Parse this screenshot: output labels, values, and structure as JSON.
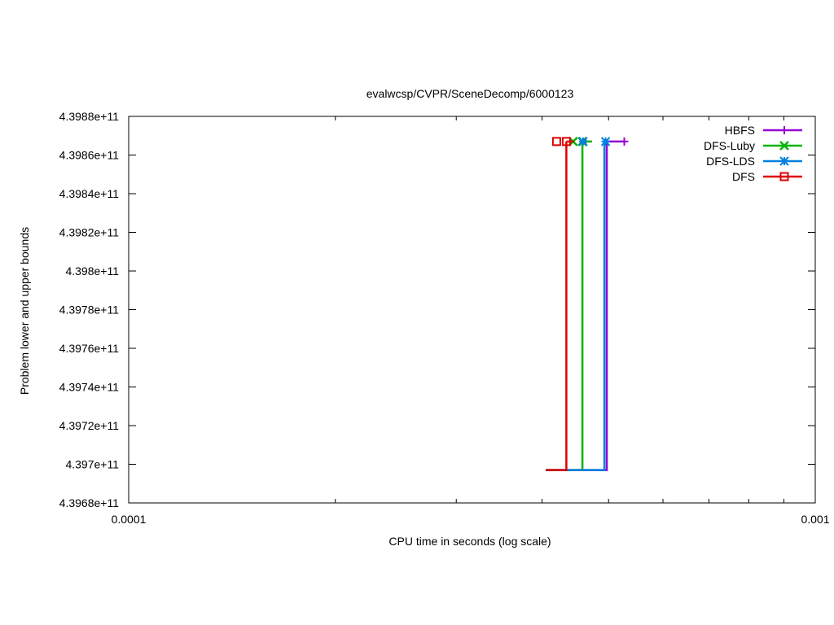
{
  "chart_data": {
    "type": "line",
    "title": "evalwcsp/CVPR/SceneDecomp/6000123",
    "xlabel": "CPU time in seconds (log scale)",
    "ylabel": "Problem lower and upper bounds",
    "x_scale": "log",
    "xlim": [
      0.0001,
      0.001
    ],
    "ylim": [
      439680000000,
      439880000000
    ],
    "x_ticks": [
      {
        "value": 0.0001,
        "label": "0.0001"
      },
      {
        "value": 0.001,
        "label": "0.001"
      }
    ],
    "y_ticks": [
      {
        "value": 439680000000,
        "label": "4.3968e+11"
      },
      {
        "value": 439700000000,
        "label": "4.397e+11"
      },
      {
        "value": 439720000000,
        "label": "4.3972e+11"
      },
      {
        "value": 439740000000,
        "label": "4.3974e+11"
      },
      {
        "value": 439760000000,
        "label": "4.3976e+11"
      },
      {
        "value": 439780000000,
        "label": "4.3978e+11"
      },
      {
        "value": 439800000000,
        "label": "4.398e+11"
      },
      {
        "value": 439820000000,
        "label": "4.3982e+11"
      },
      {
        "value": 439840000000,
        "label": "4.3984e+11"
      },
      {
        "value": 439860000000,
        "label": "4.3986e+11"
      },
      {
        "value": 439880000000,
        "label": "4.3988e+11"
      }
    ],
    "grid": false,
    "legend_position": "top-right",
    "series": [
      {
        "name": "HBFS",
        "color": "#9400d3",
        "marker": "plus",
        "lower": [
          [
            0.000405,
            439697000000
          ],
          [
            0.000497,
            439697000000
          ],
          [
            0.000497,
            439867000000
          ]
        ],
        "upper": [
          [
            0.000497,
            439867000000
          ],
          [
            0.000527,
            439867000000
          ]
        ],
        "marker_points": [
          [
            0.000463,
            439867000000
          ],
          [
            0.000527,
            439867000000
          ]
        ]
      },
      {
        "name": "DFS-Luby",
        "color": "#00b400",
        "marker": "cross",
        "lower": [
          [
            0.000405,
            439697000000
          ],
          [
            0.000458,
            439697000000
          ],
          [
            0.000458,
            439867000000
          ]
        ],
        "upper": [
          [
            0.000458,
            439867000000
          ],
          [
            0.000473,
            439867000000
          ]
        ],
        "marker_points": [
          [
            0.000444,
            439867000000
          ],
          [
            0.000458,
            439867000000
          ]
        ]
      },
      {
        "name": "DFS-LDS",
        "color": "#0080e0",
        "marker": "star",
        "lower": [
          [
            0.000405,
            439697000000
          ],
          [
            0.000493,
            439697000000
          ],
          [
            0.000493,
            439867000000
          ]
        ],
        "upper": [
          [
            0.000493,
            439867000000
          ],
          [
            0.0005,
            439867000000
          ]
        ],
        "marker_points": [
          [
            0.000459,
            439867000000
          ],
          [
            0.000495,
            439867000000
          ]
        ]
      },
      {
        "name": "DFS",
        "color": "#e00000",
        "marker": "square",
        "lower": [
          [
            0.000405,
            439697000000
          ],
          [
            0.000434,
            439697000000
          ],
          [
            0.000434,
            439867000000
          ]
        ],
        "upper": [
          [
            0.000434,
            439867000000
          ],
          [
            0.000445,
            439867000000
          ]
        ],
        "marker_points": [
          [
            0.00042,
            439867000000
          ],
          [
            0.000434,
            439867000000
          ]
        ]
      }
    ]
  }
}
